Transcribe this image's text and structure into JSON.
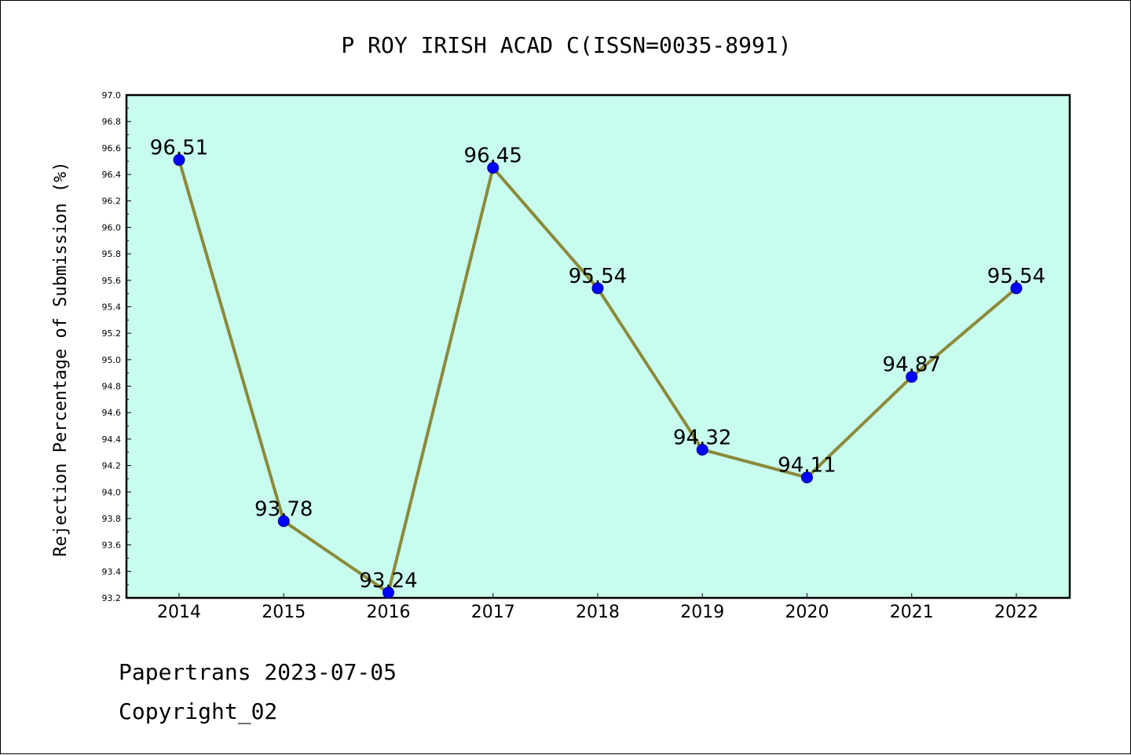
{
  "chart_data": {
    "type": "line",
    "title": "P ROY IRISH ACAD C(ISSN=0035-8991)",
    "ylabel": "Rejection Percentage of Submission (%)",
    "xlabel": "",
    "categories": [
      "2014",
      "2015",
      "2016",
      "2017",
      "2018",
      "2019",
      "2020",
      "2021",
      "2022"
    ],
    "values": [
      96.51,
      93.78,
      93.24,
      96.45,
      95.54,
      94.32,
      94.11,
      94.87,
      95.54
    ],
    "data_labels": [
      "96.51",
      "93.78",
      "93.24",
      "96.45",
      "95.54",
      "94.32",
      "94.11",
      "94.87",
      "95.54"
    ],
    "ylim": [
      93.2,
      97.0
    ],
    "yticks": [
      "93.2",
      "93.4",
      "93.6",
      "93.8",
      "94.0",
      "94.2",
      "94.4",
      "94.6",
      "94.8",
      "95.0",
      "95.2",
      "95.4",
      "95.6",
      "95.8",
      "96.0",
      "96.2",
      "96.4",
      "96.6",
      "96.8",
      "97.0"
    ],
    "grid": false,
    "colors": {
      "plot_background": "#c8fcee",
      "line": "#8b8a3a",
      "marker": "#0000ff"
    }
  },
  "footer": {
    "line1": "Papertrans 2023-07-05",
    "line2": "Copyright_02"
  }
}
